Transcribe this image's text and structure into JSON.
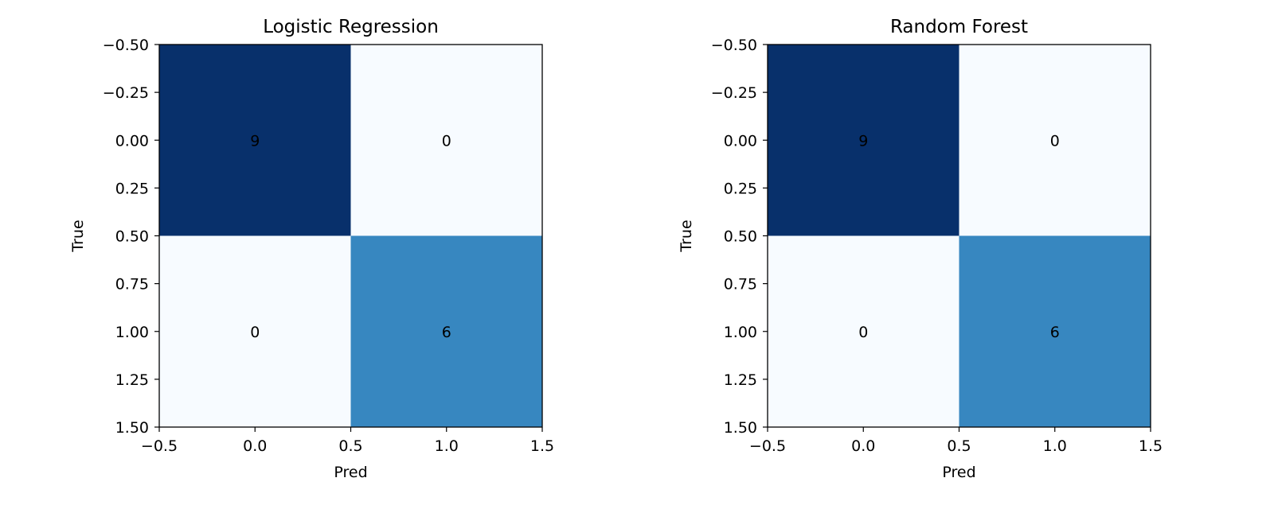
{
  "chart_data": [
    {
      "type": "heatmap",
      "title": "Logistic Regression",
      "xlabel": "Pred",
      "ylabel": "True",
      "matrix": [
        [
          9,
          0
        ],
        [
          0,
          6
        ]
      ],
      "cell_labels": [
        [
          "9",
          "0"
        ],
        [
          "0",
          "6"
        ]
      ],
      "xlim": [
        -0.5,
        1.5
      ],
      "ylim": [
        1.5,
        -0.5
      ],
      "x_ticks": [
        "−0.5",
        "0.0",
        "0.5",
        "1.0",
        "1.5"
      ],
      "y_ticks": [
        "−0.50",
        "−0.25",
        "0.00",
        "0.25",
        "0.50",
        "0.75",
        "1.00",
        "1.25",
        "1.50"
      ],
      "colormap": "Blues",
      "grid": false
    },
    {
      "type": "heatmap",
      "title": "Random Forest",
      "xlabel": "Pred",
      "ylabel": "True",
      "matrix": [
        [
          9,
          0
        ],
        [
          0,
          6
        ]
      ],
      "cell_labels": [
        [
          "9",
          "0"
        ],
        [
          "0",
          "6"
        ]
      ],
      "xlim": [
        -0.5,
        1.5
      ],
      "ylim": [
        1.5,
        -0.5
      ],
      "x_ticks": [
        "−0.5",
        "0.0",
        "0.5",
        "1.0",
        "1.5"
      ],
      "y_ticks": [
        "−0.50",
        "−0.25",
        "0.00",
        "0.25",
        "0.50",
        "0.75",
        "1.00",
        "1.25",
        "1.50"
      ],
      "colormap": "Blues",
      "grid": false
    }
  ],
  "colors": {
    "high": "#08306b",
    "mid": "#3787c0",
    "low": "#f7fbff",
    "frame": "#000000"
  }
}
